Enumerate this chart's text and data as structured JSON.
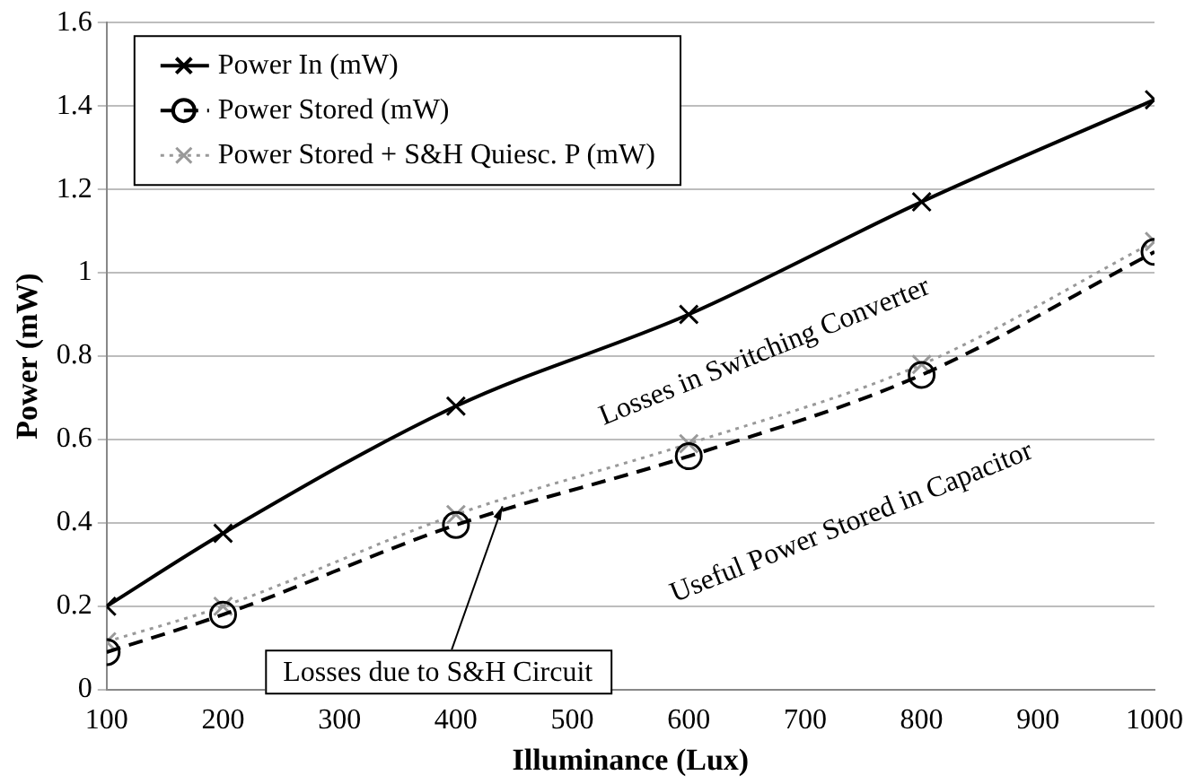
{
  "chart_data": {
    "type": "line",
    "xlabel": "Illuminance (Lux)",
    "ylabel": "Power (mW)",
    "x": [
      100,
      200,
      400,
      600,
      800,
      1000
    ],
    "series": [
      {
        "name": "Power In (mW)",
        "color": "#000000",
        "marker": "cross",
        "line_style": "solid",
        "values": [
          0.2,
          0.375,
          0.68,
          0.9,
          1.17,
          1.415
        ]
      },
      {
        "name": "Power Stored (mW)",
        "color": "#000000",
        "marker": "circle",
        "line_style": "dashed",
        "values": [
          0.09,
          0.18,
          0.395,
          0.56,
          0.755,
          1.05
        ]
      },
      {
        "name": "Power Stored + S&H Quiesc. P (mW)",
        "color": "#999999",
        "marker": "cross",
        "line_style": "dotted",
        "values": [
          0.115,
          0.2,
          0.42,
          0.59,
          0.78,
          1.075
        ]
      }
    ],
    "xlim": [
      100,
      1000
    ],
    "xticks": [
      100,
      200,
      300,
      400,
      500,
      600,
      700,
      800,
      900,
      1000
    ],
    "ylim": [
      0,
      1.6
    ],
    "yticks": [
      0,
      0.2,
      0.4,
      0.6,
      0.8,
      1,
      1.2,
      1.4,
      1.6
    ],
    "grid": "y",
    "legend": "top left",
    "annotations": [
      "Losses in Switching Converter",
      "Useful Power Stored in Capacitor",
      {
        "text": "Losses due to S&H Circuit",
        "x": 440,
        "y": 0.44
      }
    ]
  }
}
